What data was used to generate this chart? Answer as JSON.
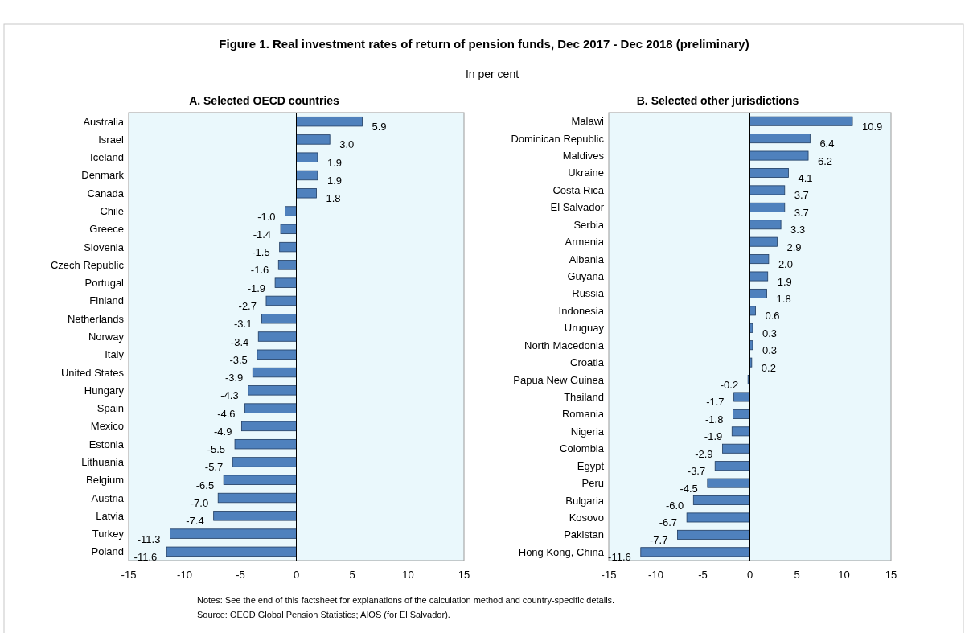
{
  "chart_data": [
    {
      "type": "bar",
      "orientation": "horizontal",
      "title": "A. Selected OECD countries",
      "annotations": [
        "Figure 1. Real investment rates of return of pension funds, Dec 2017 - Dec 2018 (preliminary)",
        "In per cent",
        "Notes: See the end of this factsheet for explanations of the calculation method and country-specific details.",
        "Source: OECD Global Pension Statistics; AIOS (for El Salvador)."
      ],
      "categories": [
        "Australia",
        "Israel",
        "Iceland",
        "Denmark",
        "Canada",
        "Chile",
        "Greece",
        "Slovenia",
        "Czech Republic",
        "Portugal",
        "Finland",
        "Netherlands",
        "Norway",
        "Italy",
        "United States",
        "Hungary",
        "Spain",
        "Mexico",
        "Estonia",
        "Lithuania",
        "Belgium",
        "Austria",
        "Latvia",
        "Turkey",
        "Poland"
      ],
      "values": [
        5.9,
        3.0,
        1.9,
        1.9,
        1.8,
        -1.0,
        -1.4,
        -1.5,
        -1.6,
        -1.9,
        -2.7,
        -3.1,
        -3.4,
        -3.5,
        -3.9,
        -4.3,
        -4.6,
        -4.9,
        -5.5,
        -5.7,
        -6.5,
        -7.0,
        -7.4,
        -11.3,
        -11.6
      ],
      "value_labels": [
        "5.9",
        "3.0",
        "1.9",
        "1.9",
        "1.8",
        "-1.0",
        "-1.4",
        "-1.5",
        "-1.6",
        "-1.9",
        "-2.7",
        "-3.1",
        "-3.4",
        "-3.5",
        "-3.9",
        "-4.3",
        "-4.6",
        "-4.9",
        "-5.5",
        "-5.7",
        "-6.5",
        "-7.0",
        "-7.4",
        "-11.3",
        "-11.6"
      ],
      "color": "#4f81bd",
      "xlim": [
        -15,
        15
      ],
      "xticks": [
        -15,
        -10,
        -5,
        0,
        5,
        10,
        15
      ]
    },
    {
      "type": "bar",
      "orientation": "horizontal",
      "title": "B. Selected other jurisdictions",
      "categories": [
        "Malawi",
        "Dominican Republic",
        "Maldives",
        "Ukraine",
        "Costa Rica",
        "El Salvador",
        "Serbia",
        "Armenia",
        "Albania",
        "Guyana",
        "Russia",
        "Indonesia",
        "Uruguay",
        "North Macedonia",
        "Croatia",
        "Papua New Guinea",
        "Thailand",
        "Romania",
        "Nigeria",
        "Colombia",
        "Egypt",
        "Peru",
        "Bulgaria",
        "Kosovo",
        "Pakistan",
        "Hong Kong, China"
      ],
      "values": [
        10.9,
        6.4,
        6.2,
        4.1,
        3.7,
        3.7,
        3.3,
        2.9,
        2.0,
        1.9,
        1.8,
        0.6,
        0.3,
        0.3,
        0.2,
        -0.2,
        -1.7,
        -1.8,
        -1.9,
        -2.9,
        -3.7,
        -4.5,
        -6.0,
        -6.7,
        -7.7,
        -11.6
      ],
      "value_labels": [
        "10.9",
        "6.4",
        "6.2",
        "4.1",
        "3.7",
        "3.7",
        "3.3",
        "2.9",
        "2.0",
        "1.9",
        "1.8",
        "0.6",
        "0.3",
        "0.3",
        "0.2",
        "-0.2",
        "-1.7",
        "-1.8",
        "-1.9",
        "-2.9",
        "-3.7",
        "-4.5",
        "-6.0",
        "-6.7",
        "-7.7",
        "-11.6"
      ],
      "color": "#4f81bd",
      "xlim": [
        -15,
        15
      ],
      "xticks": [
        -15,
        -10,
        -5,
        0,
        5,
        10,
        15
      ]
    }
  ]
}
